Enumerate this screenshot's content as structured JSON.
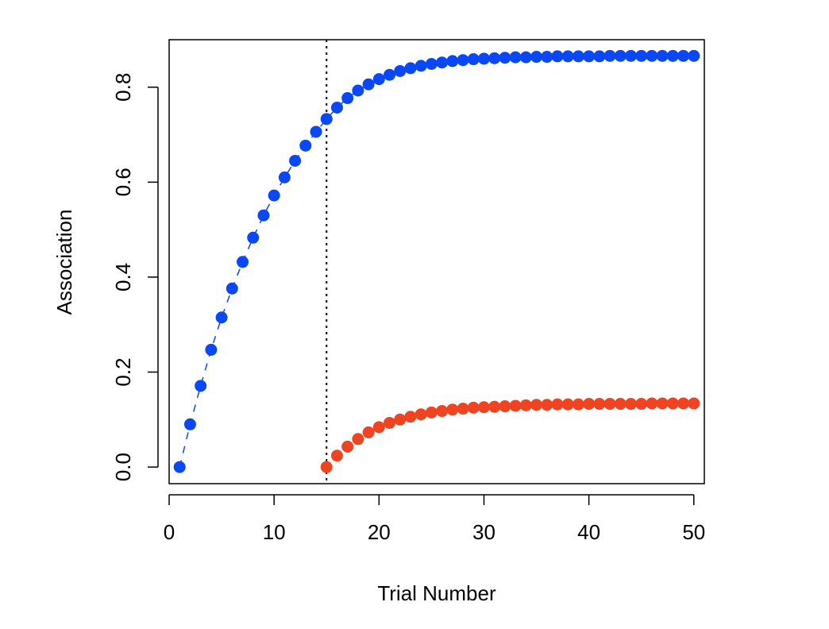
{
  "chart_data": {
    "type": "scatter",
    "xlabel": "Trial Number",
    "ylabel": "Association",
    "xlim": [
      0,
      51
    ],
    "ylim": [
      -0.035,
      0.9
    ],
    "x_ticks": [
      0,
      10,
      20,
      30,
      40,
      50
    ],
    "x_tick_labels": [
      "0",
      "10",
      "20",
      "30",
      "40",
      "50"
    ],
    "y_ticks": [
      0.0,
      0.2,
      0.4,
      0.6,
      0.8
    ],
    "y_tick_labels": [
      "0.0",
      "0.2",
      "0.4",
      "0.6",
      "0.8"
    ],
    "grid": false,
    "legend": "none",
    "vline": {
      "x": 15,
      "style": "dotted",
      "color": "#000000"
    },
    "series": [
      {
        "color": "#0a47f5",
        "connect": "dashed",
        "x": [
          1,
          2,
          3,
          4,
          5,
          6,
          7,
          8,
          9,
          10,
          11,
          12,
          13,
          14,
          15,
          16,
          17,
          18,
          19,
          20,
          21,
          22,
          23,
          24,
          25,
          26,
          27,
          28,
          29,
          30,
          31,
          32,
          33,
          34,
          35,
          36,
          37,
          38,
          39,
          40,
          41,
          42,
          43,
          44,
          45,
          46,
          47,
          48,
          49,
          50
        ],
        "y": [
          0.0,
          0.09,
          0.171,
          0.247,
          0.315,
          0.376,
          0.432,
          0.483,
          0.53,
          0.572,
          0.61,
          0.645,
          0.677,
          0.706,
          0.733,
          0.757,
          0.777,
          0.793,
          0.806,
          0.817,
          0.826,
          0.834,
          0.84,
          0.845,
          0.849,
          0.852,
          0.855,
          0.857,
          0.859,
          0.86,
          0.861,
          0.862,
          0.863,
          0.863,
          0.864,
          0.864,
          0.865,
          0.865,
          0.865,
          0.865,
          0.865,
          0.866,
          0.866,
          0.866,
          0.866,
          0.866,
          0.866,
          0.866,
          0.866,
          0.866
        ]
      },
      {
        "color": "#ee4422",
        "connect": "none",
        "x": [
          15,
          16,
          17,
          18,
          19,
          20,
          21,
          22,
          23,
          24,
          25,
          26,
          27,
          28,
          29,
          30,
          31,
          32,
          33,
          34,
          35,
          36,
          37,
          38,
          39,
          40,
          41,
          42,
          43,
          44,
          45,
          46,
          47,
          48,
          49,
          50
        ],
        "y": [
          0.0,
          0.024,
          0.043,
          0.059,
          0.073,
          0.084,
          0.093,
          0.1,
          0.106,
          0.111,
          0.115,
          0.118,
          0.121,
          0.123,
          0.125,
          0.126,
          0.127,
          0.128,
          0.129,
          0.13,
          0.131,
          0.131,
          0.132,
          0.132,
          0.132,
          0.133,
          0.133,
          0.133,
          0.133,
          0.133,
          0.133,
          0.134,
          0.134,
          0.134,
          0.134,
          0.134
        ]
      }
    ]
  }
}
